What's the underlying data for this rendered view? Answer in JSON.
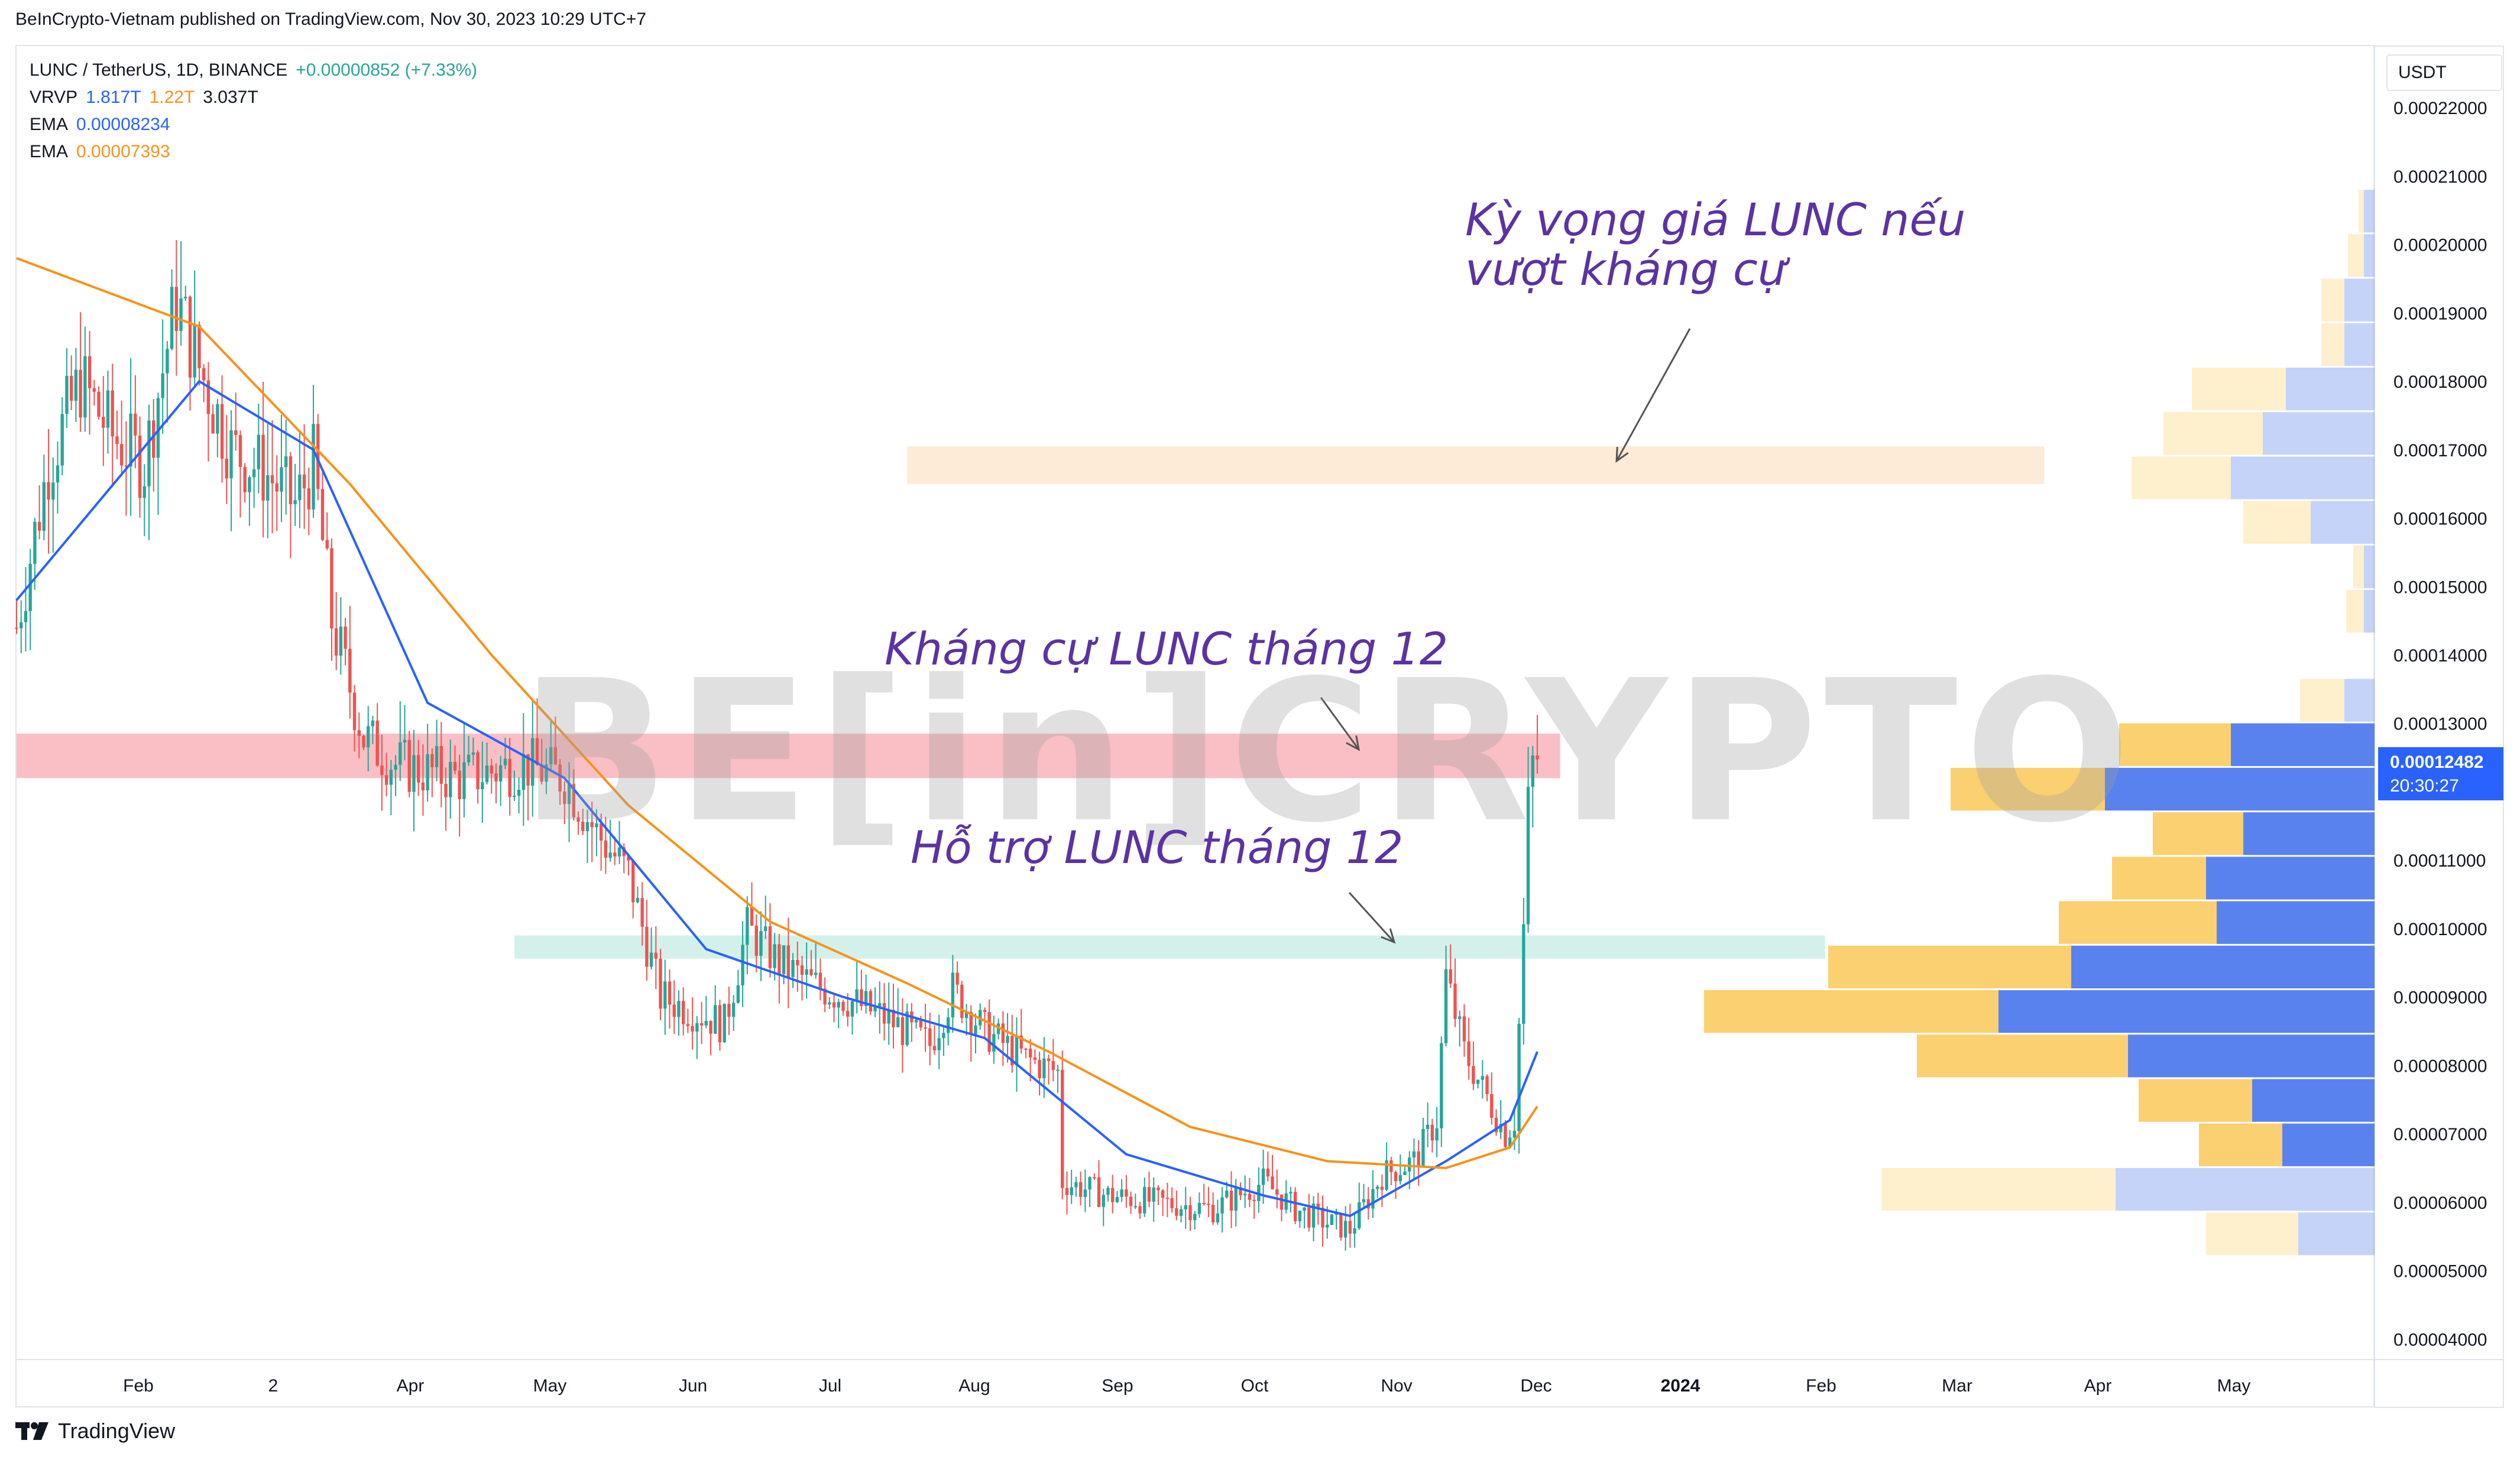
{
  "header": {
    "published": "BeInCrypto-Vietnam published on TradingView.com, Nov 30, 2023 10:29 UTC+7"
  },
  "legend": {
    "symbol": "LUNC / TetherUS, 1D, BINANCE",
    "change": "+0.00000852 (+7.33%)",
    "vrvp_label": "VRVP",
    "vrvp_up": "1.817T",
    "vrvp_down": "1.22T",
    "vrvp_total": "3.037T",
    "ema1_label": "EMA",
    "ema1_value": "0.00008234",
    "ema2_label": "EMA",
    "ema2_value": "0.00007393"
  },
  "price_axis": {
    "unit": "USDT",
    "current_price": "0.00012482",
    "countdown": "20:30:27"
  },
  "annotations": {
    "target": "Kỳ vọng giá LUNC nếu\nvượt kháng cự",
    "resistance": "Kháng cự LUNC tháng 12",
    "support": "Hỗ trợ LUNC tháng 12"
  },
  "watermark": "BE[in]CRYPTO",
  "footer": {
    "brand": "TradingView"
  },
  "colors": {
    "up": "#26a69a",
    "down": "#ef5350",
    "ema_fast": "#2962ff",
    "ema_slow": "#f7931a",
    "resistance_zone": "#f8b4bb",
    "support_zone": "#cbeee6",
    "target_zone": "#fde8d0",
    "vp_up": "#5a82ef",
    "vp_down": "#fbd070"
  },
  "chart_data": {
    "type": "candlestick",
    "y_unit": "USDT",
    "ylim": [
      3.7e-05,
      0.000229
    ],
    "y_ticks": [
      "0.00004000",
      "0.00005000",
      "0.00006000",
      "0.00007000",
      "0.00008000",
      "0.00009000",
      "0.00010000",
      "0.00011000",
      "0.00012000",
      "0.00013000",
      "0.00014000",
      "0.00015000",
      "0.00016000",
      "0.00017000",
      "0.00018000",
      "0.00019000",
      "0.00020000",
      "0.00021000",
      "0.00022000"
    ],
    "x_ticks": [
      "Feb",
      "2",
      "Apr",
      "May",
      "Jun",
      "Jul",
      "Aug",
      "Sep",
      "Oct",
      "Nov",
      "Dec",
      "2024",
      "Feb",
      "Mar",
      "Apr",
      "May"
    ],
    "price_path": [
      {
        "date": "2023-01-01",
        "price": 0.000144
      },
      {
        "date": "2023-01-08",
        "price": 0.000168
      },
      {
        "date": "2023-01-15",
        "price": 0.00018
      },
      {
        "date": "2023-01-22",
        "price": 0.000172
      },
      {
        "date": "2023-01-29",
        "price": 0.000168
      },
      {
        "date": "2023-02-05",
        "price": 0.000192
      },
      {
        "date": "2023-02-10",
        "price": 0.000182
      },
      {
        "date": "2023-02-17",
        "price": 0.00017
      },
      {
        "date": "2023-02-24",
        "price": 0.000167
      },
      {
        "date": "2023-03-03",
        "price": 0.000162
      },
      {
        "date": "2023-03-07",
        "price": 0.000168
      },
      {
        "date": "2023-03-11",
        "price": 0.000145
      },
      {
        "date": "2023-03-18",
        "price": 0.000128
      },
      {
        "date": "2023-03-25",
        "price": 0.000124
      },
      {
        "date": "2023-04-08",
        "price": 0.000122
      },
      {
        "date": "2023-04-22",
        "price": 0.000124
      },
      {
        "date": "2023-05-01",
        "price": 0.000122
      },
      {
        "date": "2023-05-08",
        "price": 0.000114
      },
      {
        "date": "2023-05-15",
        "price": 0.000108
      },
      {
        "date": "2023-05-22",
        "price": 9e-05
      },
      {
        "date": "2023-05-29",
        "price": 8.8e-05
      },
      {
        "date": "2023-06-05",
        "price": 8.6e-05
      },
      {
        "date": "2023-06-10",
        "price": 0.0001
      },
      {
        "date": "2023-06-17",
        "price": 9.5e-05
      },
      {
        "date": "2023-06-24",
        "price": 9.2e-05
      },
      {
        "date": "2023-07-01",
        "price": 9e-05
      },
      {
        "date": "2023-07-10",
        "price": 8.7e-05
      },
      {
        "date": "2023-07-20",
        "price": 8.3e-05
      },
      {
        "date": "2023-07-25",
        "price": 9.1e-05
      },
      {
        "date": "2023-08-01",
        "price": 8.5e-05
      },
      {
        "date": "2023-08-10",
        "price": 8.1e-05
      },
      {
        "date": "2023-08-17",
        "price": 7.9e-05
      },
      {
        "date": "2023-08-18",
        "price": 6.3e-05
      },
      {
        "date": "2023-08-28",
        "price": 6.1e-05
      },
      {
        "date": "2023-09-08",
        "price": 6e-05
      },
      {
        "date": "2023-09-20",
        "price": 5.9e-05
      },
      {
        "date": "2023-10-01",
        "price": 6.3e-05
      },
      {
        "date": "2023-10-08",
        "price": 5.9e-05
      },
      {
        "date": "2023-10-15",
        "price": 5.7e-05
      },
      {
        "date": "2023-10-20",
        "price": 5.6e-05
      },
      {
        "date": "2023-10-27",
        "price": 6.4e-05
      },
      {
        "date": "2023-11-03",
        "price": 6.6e-05
      },
      {
        "date": "2023-11-08",
        "price": 7.2e-05
      },
      {
        "date": "2023-11-10",
        "price": 9.3e-05
      },
      {
        "date": "2023-11-14",
        "price": 8.2e-05
      },
      {
        "date": "2023-11-20",
        "price": 7.4e-05
      },
      {
        "date": "2023-11-23",
        "price": 7e-05
      },
      {
        "date": "2023-11-25",
        "price": 7.2e-05
      },
      {
        "date": "2023-11-27",
        "price": 0.0001
      },
      {
        "date": "2023-11-28",
        "price": 0.000118
      },
      {
        "date": "2023-11-29",
        "price": 0.000124
      },
      {
        "date": "2023-11-30",
        "price": 0.000125
      }
    ],
    "ema_fast": [
      {
        "date": "2023-01-01",
        "value": 0.000148
      },
      {
        "date": "2023-02-10",
        "value": 0.00018
      },
      {
        "date": "2023-03-07",
        "value": 0.00017
      },
      {
        "date": "2023-04-01",
        "value": 0.000133
      },
      {
        "date": "2023-05-01",
        "value": 0.000122
      },
      {
        "date": "2023-06-01",
        "value": 9.7e-05
      },
      {
        "date": "2023-07-01",
        "value": 9e-05
      },
      {
        "date": "2023-08-01",
        "value": 8.4e-05
      },
      {
        "date": "2023-09-01",
        "value": 6.7e-05
      },
      {
        "date": "2023-10-01",
        "value": 6.1e-05
      },
      {
        "date": "2023-10-20",
        "value": 5.8e-05
      },
      {
        "date": "2023-11-10",
        "value": 6.6e-05
      },
      {
        "date": "2023-11-24",
        "value": 7.2e-05
      },
      {
        "date": "2023-11-30",
        "value": 8.2e-05
      }
    ],
    "ema_slow": [
      {
        "date": "2023-01-01",
        "value": 0.000198
      },
      {
        "date": "2023-02-10",
        "value": 0.000188
      },
      {
        "date": "2023-03-15",
        "value": 0.000165
      },
      {
        "date": "2023-04-15",
        "value": 0.00014
      },
      {
        "date": "2023-05-15",
        "value": 0.000118
      },
      {
        "date": "2023-06-15",
        "value": 0.000101
      },
      {
        "date": "2023-07-15",
        "value": 9.2e-05
      },
      {
        "date": "2023-08-15",
        "value": 8.2e-05
      },
      {
        "date": "2023-09-15",
        "value": 7.1e-05
      },
      {
        "date": "2023-10-15",
        "value": 6.6e-05
      },
      {
        "date": "2023-11-10",
        "value": 6.5e-05
      },
      {
        "date": "2023-11-24",
        "value": 6.8e-05
      },
      {
        "date": "2023-11-30",
        "value": 7.4e-05
      }
    ],
    "zones": [
      {
        "name": "Kháng cự LUNC tháng 12",
        "from": "2023-01-01",
        "to": "2023-12-05",
        "low": 0.000122,
        "high": 0.0001285
      },
      {
        "name": "Hỗ trợ LUNC tháng 12",
        "from": "2023-04-20",
        "to": "2024-02-01",
        "low": 9.56e-05,
        "high": 9.9e-05
      },
      {
        "name": "Kỳ vọng giá LUNC nếu vượt kháng cự",
        "from": "2023-07-15",
        "to": "2024-03-20",
        "low": 0.000165,
        "high": 0.0001705
      }
    ],
    "volume_profile": [
      {
        "low": 5.2e-05,
        "high": 5.85e-05,
        "up": 0.43,
        "down": 0.52,
        "faded": true
      },
      {
        "low": 5.85e-05,
        "high": 6.5e-05,
        "up": 1.46,
        "down": 1.32,
        "faded": true
      },
      {
        "low": 6.5e-05,
        "high": 7.15e-05,
        "up": 0.52,
        "down": 0.47,
        "faded": false
      },
      {
        "low": 7.15e-05,
        "high": 7.8e-05,
        "up": 0.69,
        "down": 0.64,
        "faded": false
      },
      {
        "low": 7.8e-05,
        "high": 8.45e-05,
        "up": 1.39,
        "down": 1.19,
        "faded": false
      },
      {
        "low": 8.45e-05,
        "high": 9.1e-05,
        "up": 2.12,
        "down": 1.66,
        "faded": false
      },
      {
        "low": 9.1e-05,
        "high": 9.75e-05,
        "up": 1.71,
        "down": 1.37,
        "faded": false
      },
      {
        "low": 9.75e-05,
        "high": 0.000104,
        "up": 0.89,
        "down": 0.89,
        "faded": false
      },
      {
        "low": 0.000104,
        "high": 0.0001105,
        "up": 0.95,
        "down": 0.53,
        "faded": false
      },
      {
        "low": 0.0001105,
        "high": 0.000117,
        "up": 0.74,
        "down": 0.51,
        "faded": false
      },
      {
        "low": 0.000117,
        "high": 0.0001235,
        "up": 1.52,
        "down": 0.87,
        "faded": false
      },
      {
        "low": 0.0001235,
        "high": 0.00013,
        "up": 0.81,
        "down": 0.63,
        "faded": false
      },
      {
        "low": 0.00013,
        "high": 0.0001365,
        "up": 0.17,
        "down": 0.25,
        "faded": true
      },
      {
        "low": 0.000143,
        "high": 0.0001495,
        "up": 0.06,
        "down": 0.1,
        "faded": true
      },
      {
        "low": 0.0001495,
        "high": 0.000156,
        "up": 0.06,
        "down": 0.06,
        "faded": true
      },
      {
        "low": 0.000156,
        "high": 0.0001625,
        "up": 0.36,
        "down": 0.38,
        "faded": true
      },
      {
        "low": 0.0001625,
        "high": 0.000169,
        "up": 0.81,
        "down": 0.56,
        "faded": true
      },
      {
        "low": 0.000169,
        "high": 0.0001755,
        "up": 0.63,
        "down": 0.56,
        "faded": true
      },
      {
        "low": 0.0001755,
        "high": 0.000182,
        "up": 0.5,
        "down": 0.53,
        "faded": true
      },
      {
        "low": 0.000182,
        "high": 0.0001885,
        "up": 0.17,
        "down": 0.13,
        "faded": true
      },
      {
        "low": 0.0001885,
        "high": 0.000195,
        "up": 0.17,
        "down": 0.13,
        "faded": true
      },
      {
        "low": 0.000195,
        "high": 0.0002015,
        "up": 0.06,
        "down": 0.09,
        "faded": true
      },
      {
        "low": 0.0002015,
        "high": 0.000208,
        "up": 0.06,
        "down": 0.03,
        "faded": true
      }
    ]
  }
}
